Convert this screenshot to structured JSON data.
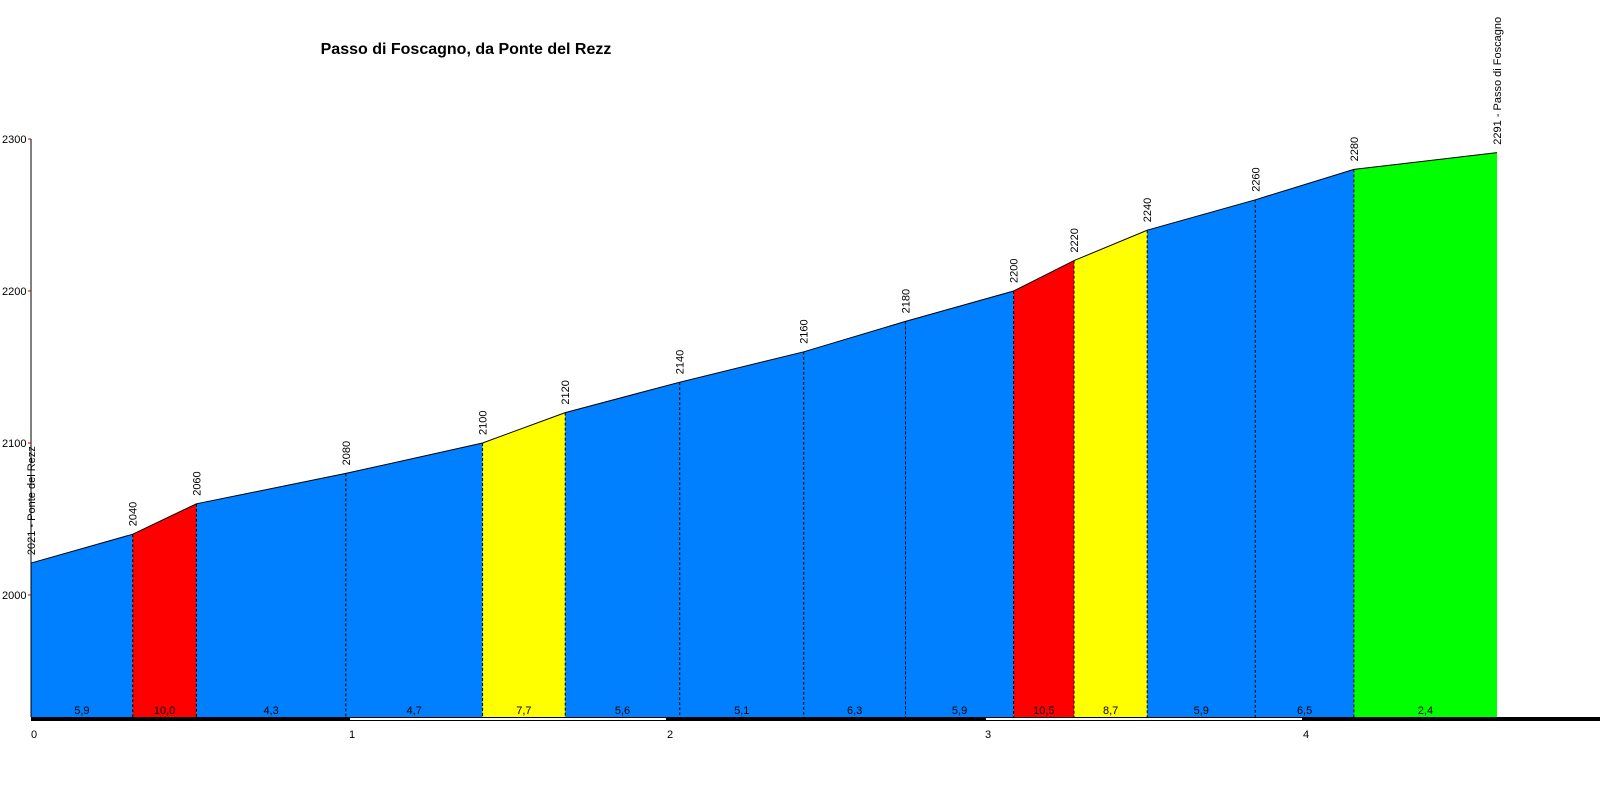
{
  "chart_data": {
    "type": "area",
    "title": "Passo di Foscagno, da Ponte del Rezz",
    "xlabel": "",
    "ylabel": "",
    "xlim": [
      0,
      4.93
    ],
    "ylim": [
      1920,
      2300
    ],
    "x_ticks": [
      0,
      1,
      2,
      3,
      4
    ],
    "y_ticks": [
      2000,
      2100,
      2200,
      2300
    ],
    "points": [
      {
        "x": 0.0,
        "elev": 2021,
        "label": "2021 - Ponte del Rezz"
      },
      {
        "x": 0.32,
        "elev": 2040,
        "label": "2040"
      },
      {
        "x": 0.52,
        "elev": 2060,
        "label": "2060"
      },
      {
        "x": 0.99,
        "elev": 2080,
        "label": "2080"
      },
      {
        "x": 1.42,
        "elev": 2100,
        "label": "2100"
      },
      {
        "x": 1.68,
        "elev": 2120,
        "label": "2120"
      },
      {
        "x": 2.04,
        "elev": 2140,
        "label": "2140"
      },
      {
        "x": 2.43,
        "elev": 2160,
        "label": "2160"
      },
      {
        "x": 2.75,
        "elev": 2180,
        "label": "2180"
      },
      {
        "x": 3.09,
        "elev": 2200,
        "label": "2200"
      },
      {
        "x": 3.28,
        "elev": 2220,
        "label": "2220"
      },
      {
        "x": 3.51,
        "elev": 2240,
        "label": "2240"
      },
      {
        "x": 3.85,
        "elev": 2260,
        "label": "2260"
      },
      {
        "x": 4.16,
        "elev": 2280,
        "label": "2280"
      },
      {
        "x": 4.61,
        "elev": 2291,
        "label": "2291 - Passo di Foscagno"
      }
    ],
    "segments": [
      {
        "gradient": "5,9",
        "color": "#0080ff"
      },
      {
        "gradient": "10,0",
        "color": "#ff0000"
      },
      {
        "gradient": "4,3",
        "color": "#0080ff"
      },
      {
        "gradient": "4,7",
        "color": "#0080ff"
      },
      {
        "gradient": "7,7",
        "color": "#ffff00"
      },
      {
        "gradient": "5,6",
        "color": "#0080ff"
      },
      {
        "gradient": "5,1",
        "color": "#0080ff"
      },
      {
        "gradient": "6,3",
        "color": "#0080ff"
      },
      {
        "gradient": "5,9",
        "color": "#0080ff"
      },
      {
        "gradient": "10,5",
        "color": "#ff0000"
      },
      {
        "gradient": "8,7",
        "color": "#ffff00"
      },
      {
        "gradient": "5,9",
        "color": "#0080ff"
      },
      {
        "gradient": "6,5",
        "color": "#0080ff"
      },
      {
        "gradient": "2,4",
        "color": "#00ff00"
      }
    ],
    "grid": false
  }
}
